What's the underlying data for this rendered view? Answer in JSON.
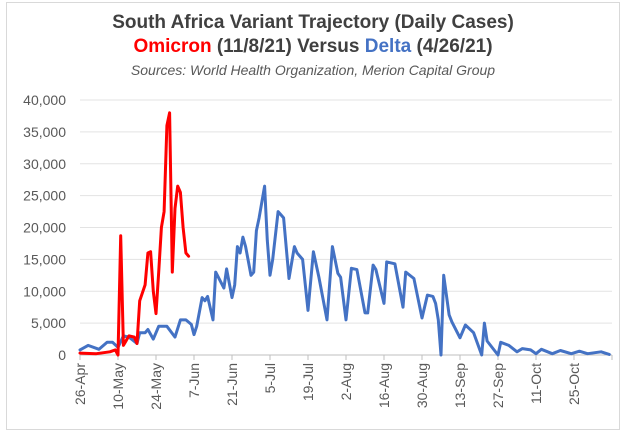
{
  "chart_data": {
    "type": "line",
    "title": "South Africa Variant Trajectory (Daily Cases)",
    "subtitle": {
      "omicron_label": "Omicron",
      "omicron_date": "(11/8/21)",
      "versus": "Versus",
      "delta_label": "Delta",
      "delta_date": "(4/26/21)"
    },
    "sources": "Sources:  World Health Organization, Merion Capital Group",
    "xlabel": "",
    "ylabel": "",
    "xlim": [
      "2021-04-26",
      "2021-11-08"
    ],
    "ylim": [
      0,
      40000
    ],
    "y_ticks": [
      "0",
      "5,000",
      "10,000",
      "15,000",
      "20,000",
      "25,000",
      "30,000",
      "35,000",
      "40,000"
    ],
    "x_ticks": [
      "26-Apr",
      "10-May",
      "24-May",
      "7-Jun",
      "21-Jun",
      "5-Jul",
      "19-Jul",
      "2-Aug",
      "16-Aug",
      "30-Aug",
      "13-Sep",
      "27-Sep",
      "11-Oct",
      "25-Oct"
    ],
    "grid": "horizontal",
    "colors": {
      "omicron": "#ff0000",
      "delta": "#4472c4"
    },
    "series": [
      {
        "name": "Delta",
        "color": "#4472c4",
        "points": [
          [
            "2021-04-26",
            800
          ],
          [
            "2021-04-29",
            1500
          ],
          [
            "2021-05-03",
            900
          ],
          [
            "2021-05-06",
            2000
          ],
          [
            "2021-05-08",
            2000
          ],
          [
            "2021-05-10",
            1200
          ],
          [
            "2021-05-12",
            3000
          ],
          [
            "2021-05-14",
            2800
          ],
          [
            "2021-05-17",
            1800
          ],
          [
            "2021-05-18",
            3500
          ],
          [
            "2021-05-20",
            3500
          ],
          [
            "2021-05-21",
            4000
          ],
          [
            "2021-05-23",
            2500
          ],
          [
            "2021-05-25",
            4500
          ],
          [
            "2021-05-28",
            4500
          ],
          [
            "2021-05-31",
            2800
          ],
          [
            "2021-06-02",
            5500
          ],
          [
            "2021-06-04",
            5500
          ],
          [
            "2021-06-06",
            4800
          ],
          [
            "2021-06-07",
            3200
          ],
          [
            "2021-06-08",
            4500
          ],
          [
            "2021-06-10",
            9000
          ],
          [
            "2021-06-11",
            8500
          ],
          [
            "2021-06-12",
            9200
          ],
          [
            "2021-06-14",
            5500
          ],
          [
            "2021-06-15",
            13000
          ],
          [
            "2021-06-18",
            10500
          ],
          [
            "2021-06-19",
            13500
          ],
          [
            "2021-06-21",
            9000
          ],
          [
            "2021-06-22",
            11000
          ],
          [
            "2021-06-23",
            17000
          ],
          [
            "2021-06-24",
            16000
          ],
          [
            "2021-06-25",
            18500
          ],
          [
            "2021-06-26",
            17000
          ],
          [
            "2021-06-28",
            12500
          ],
          [
            "2021-06-29",
            13000
          ],
          [
            "2021-06-30",
            19500
          ],
          [
            "2021-07-01",
            21500
          ],
          [
            "2021-07-03",
            26500
          ],
          [
            "2021-07-04",
            18000
          ],
          [
            "2021-07-05",
            12500
          ],
          [
            "2021-07-06",
            15000
          ],
          [
            "2021-07-08",
            22500
          ],
          [
            "2021-07-09",
            22000
          ],
          [
            "2021-07-10",
            21500
          ],
          [
            "2021-07-12",
            12000
          ],
          [
            "2021-07-14",
            17000
          ],
          [
            "2021-07-15",
            16000
          ],
          [
            "2021-07-17",
            15000
          ],
          [
            "2021-07-19",
            7000
          ],
          [
            "2021-07-21",
            16200
          ],
          [
            "2021-07-23",
            12200
          ],
          [
            "2021-07-26",
            5500
          ],
          [
            "2021-07-28",
            17000
          ],
          [
            "2021-07-30",
            12800
          ],
          [
            "2021-07-31",
            12200
          ],
          [
            "2021-08-02",
            5500
          ],
          [
            "2021-08-04",
            13600
          ],
          [
            "2021-08-06",
            13400
          ],
          [
            "2021-08-09",
            6600
          ],
          [
            "2021-08-10",
            6600
          ],
          [
            "2021-08-12",
            14100
          ],
          [
            "2021-08-13",
            13400
          ],
          [
            "2021-08-16",
            8100
          ],
          [
            "2021-08-17",
            14600
          ],
          [
            "2021-08-20",
            14300
          ],
          [
            "2021-08-23",
            7500
          ],
          [
            "2021-08-24",
            13000
          ],
          [
            "2021-08-27",
            12000
          ],
          [
            "2021-08-30",
            5800
          ],
          [
            "2021-09-01",
            9400
          ],
          [
            "2021-09-03",
            9200
          ],
          [
            "2021-09-04",
            8100
          ],
          [
            "2021-09-05",
            5500
          ],
          [
            "2021-09-06",
            0
          ],
          [
            "2021-09-07",
            12500
          ],
          [
            "2021-09-09",
            6300
          ],
          [
            "2021-09-10",
            5200
          ],
          [
            "2021-09-13",
            2700
          ],
          [
            "2021-09-15",
            4700
          ],
          [
            "2021-09-18",
            3500
          ],
          [
            "2021-09-21",
            0
          ],
          [
            "2021-09-22",
            5000
          ],
          [
            "2021-09-23",
            2200
          ],
          [
            "2021-09-27",
            0
          ],
          [
            "2021-09-28",
            2000
          ],
          [
            "2021-10-01",
            1500
          ],
          [
            "2021-10-04",
            500
          ],
          [
            "2021-10-06",
            1000
          ],
          [
            "2021-10-09",
            800
          ],
          [
            "2021-10-11",
            200
          ],
          [
            "2021-10-13",
            900
          ],
          [
            "2021-10-17",
            200
          ],
          [
            "2021-10-20",
            700
          ],
          [
            "2021-10-24",
            200
          ],
          [
            "2021-10-27",
            600
          ],
          [
            "2021-10-30",
            200
          ],
          [
            "2021-11-04",
            500
          ],
          [
            "2021-11-07",
            100
          ]
        ]
      },
      {
        "name": "Omicron",
        "color": "#ff0000",
        "points": [
          [
            "2021-04-26",
            300
          ],
          [
            "2021-05-02",
            200
          ],
          [
            "2021-05-07",
            500
          ],
          [
            "2021-05-09",
            800
          ],
          [
            "2021-05-10",
            0
          ],
          [
            "2021-05-11",
            18700
          ],
          [
            "2021-05-12",
            1500
          ],
          [
            "2021-05-14",
            3000
          ],
          [
            "2021-05-16",
            2800
          ],
          [
            "2021-05-17",
            1800
          ],
          [
            "2021-05-18",
            8500
          ],
          [
            "2021-05-20",
            11000
          ],
          [
            "2021-05-21",
            16000
          ],
          [
            "2021-05-22",
            16200
          ],
          [
            "2021-05-23",
            10000
          ],
          [
            "2021-05-24",
            6500
          ],
          [
            "2021-05-25",
            13000
          ],
          [
            "2021-05-26",
            20000
          ],
          [
            "2021-05-27",
            22500
          ],
          [
            "2021-05-28",
            36000
          ],
          [
            "2021-05-29",
            38000
          ],
          [
            "2021-05-30",
            13000
          ],
          [
            "2021-05-31",
            23000
          ],
          [
            "2021-06-01",
            26500
          ],
          [
            "2021-06-02",
            25500
          ],
          [
            "2021-06-03",
            20000
          ],
          [
            "2021-06-04",
            16000
          ],
          [
            "2021-06-05",
            15500
          ]
        ]
      }
    ]
  }
}
